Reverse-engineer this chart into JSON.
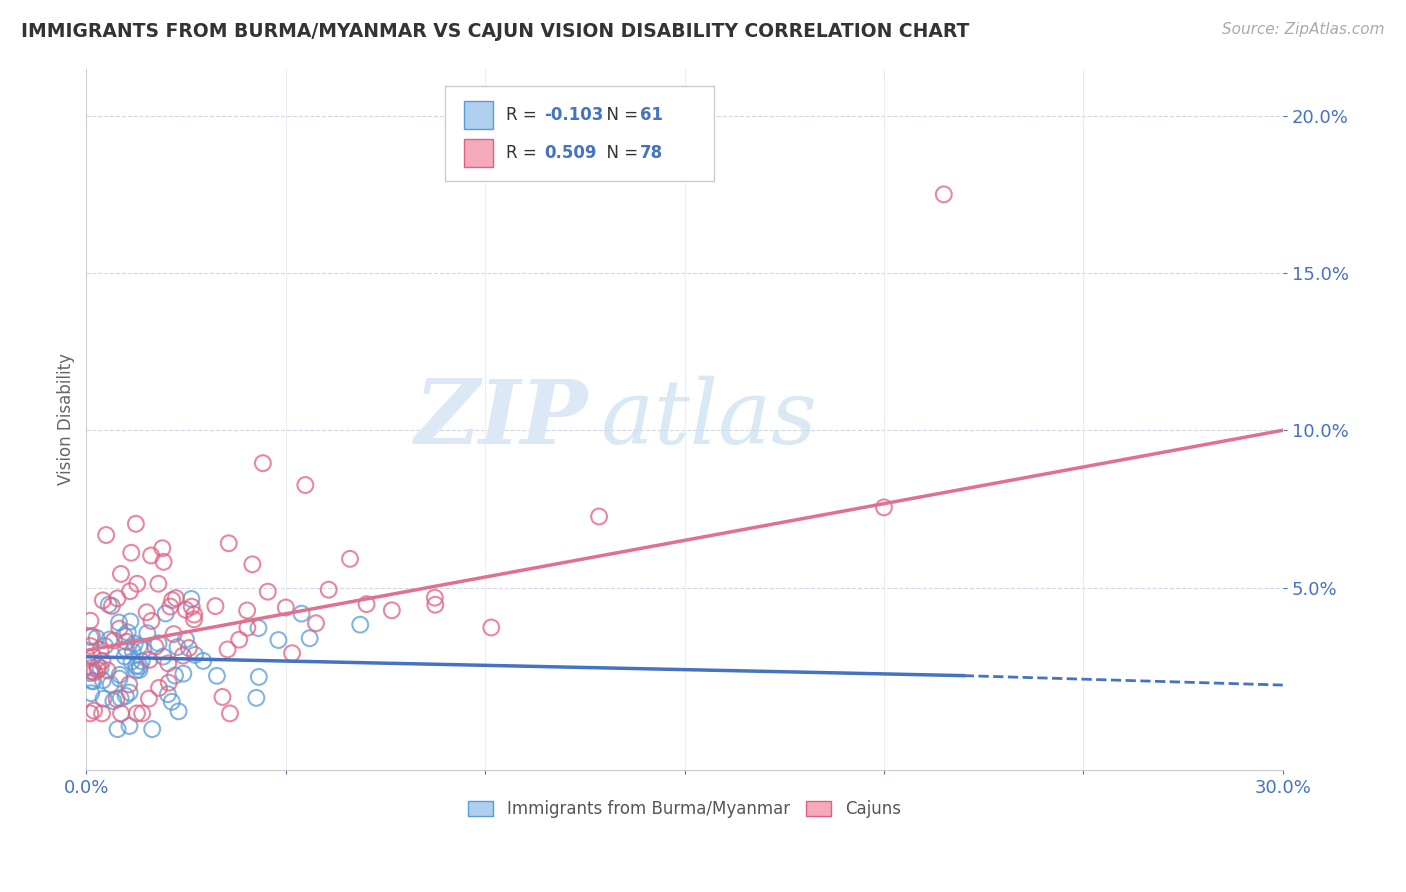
{
  "title": "IMMIGRANTS FROM BURMA/MYANMAR VS CAJUN VISION DISABILITY CORRELATION CHART",
  "source": "Source: ZipAtlas.com",
  "ylabel": "Vision Disability",
  "xlim": [
    0.0,
    0.3
  ],
  "ylim": [
    -0.008,
    0.215
  ],
  "blue_R": -0.103,
  "blue_N": 61,
  "pink_R": 0.509,
  "pink_N": 78,
  "blue_fill": "#AECFF0",
  "blue_edge": "#5B9BD5",
  "pink_fill": "#F4AABB",
  "pink_edge": "#E06080",
  "blue_line_color": "#4472C4",
  "pink_line_color": "#E07090",
  "tick_color": "#4472C4",
  "watermark_zip": "ZIP",
  "watermark_atlas": "atlas",
  "legend_label_blue": "Immigrants from Burma/Myanmar",
  "legend_label_pink": "Cajuns",
  "blue_line_start_x": 0.0,
  "blue_line_start_y": 0.028,
  "blue_line_solid_end_x": 0.22,
  "blue_line_solid_end_y": 0.022,
  "blue_line_dash_end_x": 0.3,
  "blue_line_dash_end_y": 0.019,
  "pink_line_start_x": 0.0,
  "pink_line_start_y": 0.03,
  "pink_line_end_x": 0.3,
  "pink_line_end_y": 0.1
}
